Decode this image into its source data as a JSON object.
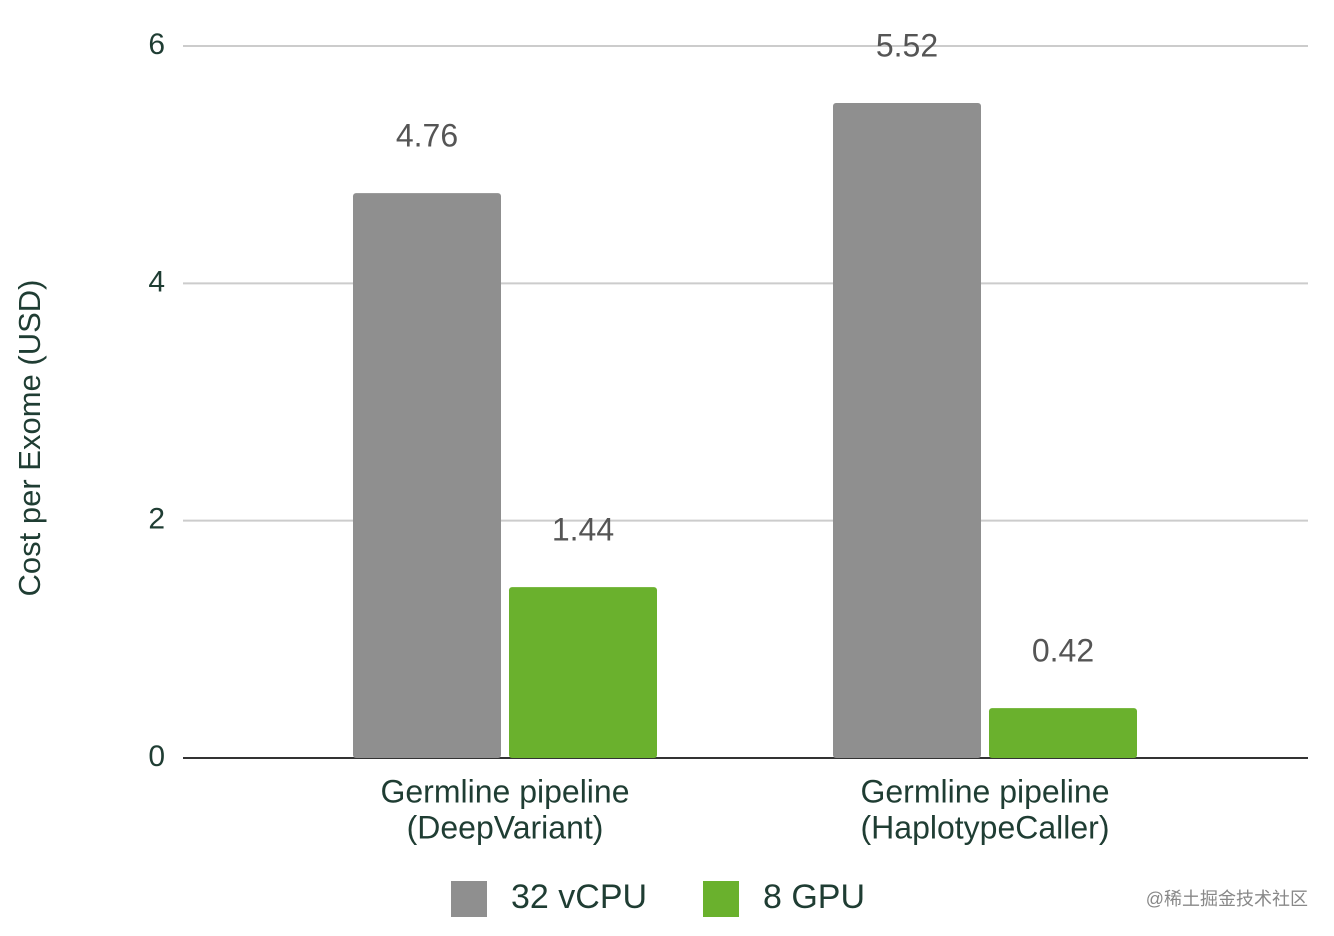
{
  "chart_data": {
    "type": "bar",
    "y_axis_label": "Cost per Exome (USD)",
    "categories": [
      [
        "Germline pipeline",
        "(DeepVariant)"
      ],
      [
        "Germline pipeline",
        "(HaplotypeCaller)"
      ]
    ],
    "series": [
      {
        "name": "32 vCPU",
        "color": "#8f8f8f",
        "values": [
          4.76,
          5.52
        ]
      },
      {
        "name": "8 GPU",
        "color": "#6ab12d",
        "values": [
          1.44,
          0.42
        ]
      }
    ],
    "ylim": [
      0,
      6
    ],
    "yticks": [
      0,
      2,
      4,
      6
    ],
    "grid": true,
    "legend": "bottom",
    "watermark": "@稀土掘金技术社区"
  }
}
